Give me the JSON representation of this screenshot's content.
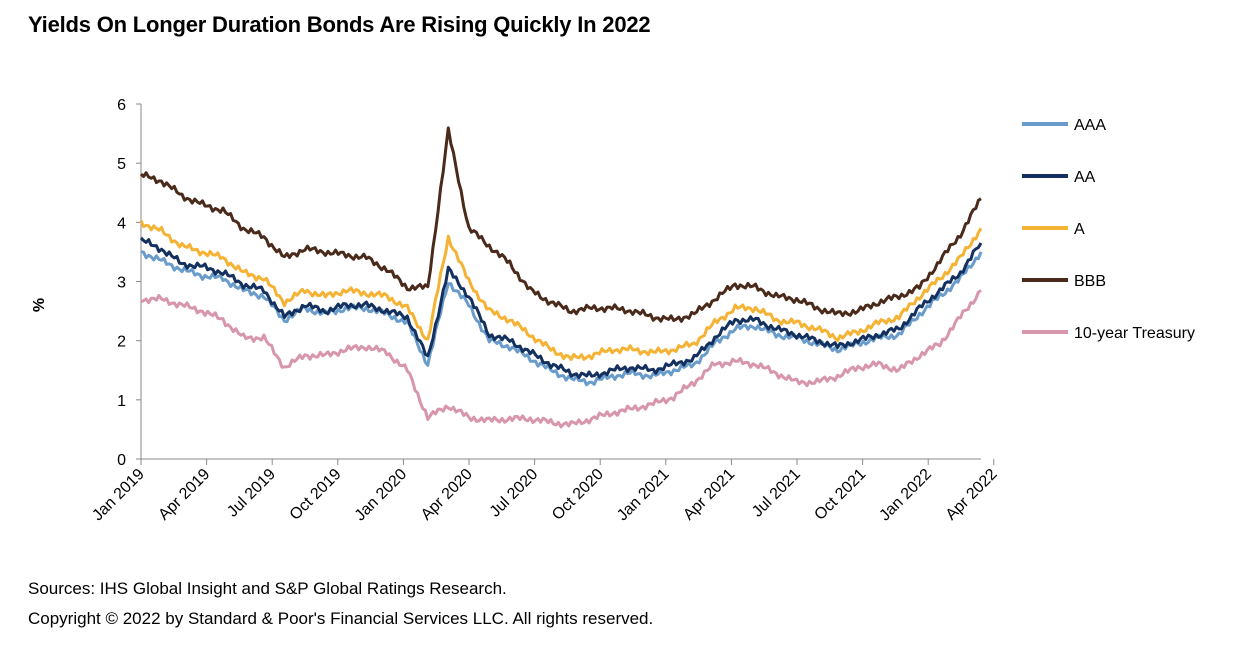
{
  "title": "Yields On Longer Duration Bonds Are Rising Quickly In 2022",
  "footer": {
    "sources": "Sources: IHS Global Insight and S&P Global Ratings Research.",
    "copyright": "Copyright © 2022 by Standard & Poor's Financial Services LLC. All rights reserved."
  },
  "chart_data": {
    "type": "line",
    "title": "Yields On Longer Duration Bonds Are Rising Quickly In 2022",
    "ylabel": "%",
    "xlabel": "",
    "ylim": [
      0,
      6
    ],
    "yticks": [
      0,
      1,
      2,
      3,
      4,
      5,
      6
    ],
    "xticks": [
      "Jan 2019",
      "Apr 2019",
      "Jul 2019",
      "Oct 2019",
      "Jan 2020",
      "Apr 2020",
      "Jul 2020",
      "Oct 2020",
      "Jan 2021",
      "Apr 2021",
      "Jul 2021",
      "Oct 2021",
      "Jan 2022",
      "Apr 2022"
    ],
    "grid": false,
    "legend_position": "right",
    "x": [
      "2019-01",
      "2019-02",
      "2019-03",
      "2019-04",
      "2019-05",
      "2019-06",
      "2019-07",
      "2019-08",
      "2019-09",
      "2019-10",
      "2019-11",
      "2019-12",
      "2020-01",
      "2020-02",
      "2020-03-early",
      "2020-03-mid",
      "2020-03-late",
      "2020-04",
      "2020-05",
      "2020-06",
      "2020-07",
      "2020-08",
      "2020-09",
      "2020-10",
      "2020-11",
      "2020-12",
      "2021-01",
      "2021-02",
      "2021-03",
      "2021-04",
      "2021-05",
      "2021-06",
      "2021-07",
      "2021-08",
      "2021-09",
      "2021-10",
      "2021-11",
      "2021-12",
      "2022-01",
      "2022-02",
      "2022-03",
      "2022-04"
    ],
    "series": [
      {
        "name": "AAA",
        "color": "#6a9ccb",
        "values": [
          3.5,
          3.35,
          3.2,
          3.1,
          3.05,
          2.85,
          2.75,
          2.35,
          2.55,
          2.45,
          2.55,
          2.55,
          2.45,
          2.3,
          1.6,
          3.0,
          2.6,
          2.0,
          1.9,
          1.7,
          1.5,
          1.35,
          1.3,
          1.4,
          1.45,
          1.4,
          1.5,
          1.6,
          1.95,
          2.2,
          2.25,
          2.1,
          2.05,
          1.95,
          1.85,
          1.95,
          2.05,
          2.1,
          2.45,
          2.75,
          3.05,
          3.5
        ]
      },
      {
        "name": "AA",
        "color": "#13305e",
        "values": [
          3.7,
          3.55,
          3.3,
          3.25,
          3.15,
          2.95,
          2.85,
          2.4,
          2.6,
          2.5,
          2.6,
          2.6,
          2.5,
          2.4,
          1.7,
          3.2,
          2.75,
          2.1,
          2.0,
          1.8,
          1.6,
          1.45,
          1.4,
          1.5,
          1.55,
          1.5,
          1.6,
          1.7,
          2.05,
          2.35,
          2.35,
          2.2,
          2.1,
          2.0,
          1.9,
          2.0,
          2.1,
          2.2,
          2.55,
          2.85,
          3.15,
          3.65
        ]
      },
      {
        "name": "A",
        "color": "#f5b335",
        "values": [
          4.0,
          3.85,
          3.6,
          3.5,
          3.4,
          3.15,
          3.05,
          2.65,
          2.85,
          2.75,
          2.85,
          2.8,
          2.75,
          2.55,
          2.0,
          3.75,
          3.0,
          2.5,
          2.35,
          2.1,
          1.85,
          1.7,
          1.75,
          1.85,
          1.85,
          1.8,
          1.85,
          1.95,
          2.3,
          2.55,
          2.55,
          2.35,
          2.3,
          2.2,
          2.05,
          2.15,
          2.3,
          2.4,
          2.75,
          3.05,
          3.4,
          3.9
        ]
      },
      {
        "name": "BBB",
        "color": "#4a2a1a",
        "values": [
          4.8,
          4.7,
          4.45,
          4.3,
          4.2,
          3.9,
          3.75,
          3.4,
          3.55,
          3.5,
          3.45,
          3.4,
          3.2,
          2.9,
          2.9,
          5.55,
          3.9,
          3.6,
          3.3,
          2.85,
          2.65,
          2.5,
          2.55,
          2.55,
          2.5,
          2.4,
          2.35,
          2.45,
          2.7,
          2.95,
          2.9,
          2.75,
          2.7,
          2.55,
          2.45,
          2.5,
          2.65,
          2.75,
          2.9,
          3.35,
          3.8,
          4.4
        ]
      },
      {
        "name": "10-year Treasury",
        "color": "#d796ab",
        "values": [
          2.7,
          2.7,
          2.6,
          2.5,
          2.35,
          2.05,
          2.05,
          1.55,
          1.75,
          1.75,
          1.85,
          1.9,
          1.8,
          1.5,
          0.7,
          0.9,
          0.7,
          0.65,
          0.68,
          0.68,
          0.62,
          0.58,
          0.68,
          0.78,
          0.85,
          0.93,
          1.05,
          1.3,
          1.6,
          1.65,
          1.6,
          1.45,
          1.3,
          1.3,
          1.4,
          1.55,
          1.6,
          1.5,
          1.75,
          1.95,
          2.4,
          2.85
        ]
      }
    ]
  }
}
